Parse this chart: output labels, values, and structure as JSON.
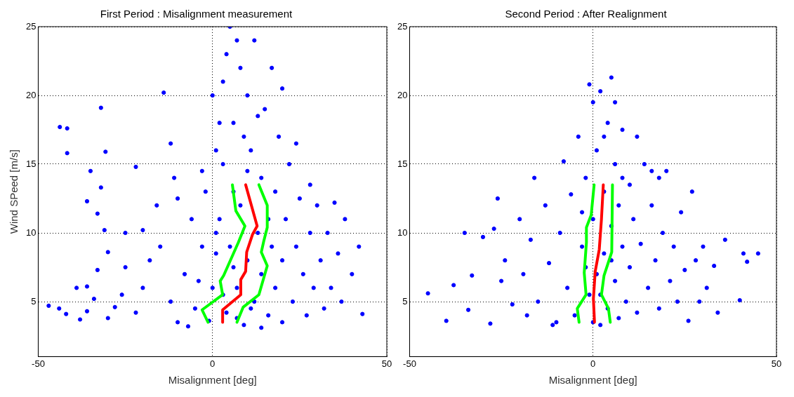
{
  "chart_data": [
    {
      "type": "scatter",
      "title": "First Period : Misalignment measurement",
      "xlabel": "Misalignment [deg]",
      "ylabel": "Wind SPeed [m/s]",
      "xlim": [
        -50,
        50
      ],
      "xticks": [
        -50,
        0,
        50
      ],
      "ylim": [
        1,
        25
      ],
      "yticks": [
        5,
        10,
        15,
        20,
        25
      ],
      "grid": true,
      "legend": false,
      "series": [
        {
          "type": "scatter",
          "color": "#0000ff",
          "marker": "circle",
          "x": [
            -47,
            -44,
            -42,
            -38,
            -36,
            -39,
            -34,
            -30,
            -28,
            -26,
            -25,
            -22,
            -20,
            -18,
            -20,
            -15,
            -12,
            -10,
            -8,
            -6,
            -5,
            -3,
            -2,
            -1,
            0,
            1,
            2,
            3,
            4,
            5,
            6,
            7,
            8,
            8,
            9,
            10,
            10,
            11,
            12,
            12,
            13,
            14,
            14,
            15,
            16,
            16,
            17,
            18,
            18,
            19,
            20,
            20,
            21,
            22,
            23,
            24,
            25,
            26,
            27,
            28,
            29,
            30,
            31,
            32,
            33,
            34,
            35,
            36,
            37,
            38,
            40,
            42,
            43,
            5,
            3,
            7,
            2,
            9,
            1,
            -3,
            13,
            6,
            -14,
            -12,
            -11,
            -22,
            -16,
            -32,
            -43.8,
            -41.7,
            -41.7,
            -30.7,
            -32,
            -36,
            -35,
            -33,
            -31,
            -30,
            -33,
            -36,
            -25,
            -10,
            0,
            4,
            10,
            20,
            17,
            24,
            28,
            3,
            7,
            -4,
            11,
            14,
            -7,
            1,
            6
          ],
          "values": [
            4.7,
            4.5,
            4.1,
            3.7,
            4.3,
            6,
            5.2,
            3.8,
            4.6,
            5.5,
            7.5,
            4.2,
            6,
            8,
            10.2,
            9,
            5,
            3.5,
            7,
            11,
            4.5,
            9,
            13,
            3.6,
            6,
            8.5,
            11,
            15,
            4.2,
            9,
            18,
            6,
            22,
            12,
            3.3,
            20,
            8,
            16,
            5,
            24,
            10,
            14,
            7,
            19,
            4,
            11,
            9,
            13,
            6,
            17,
            3.5,
            8,
            11,
            15,
            5,
            9,
            12.5,
            7,
            4,
            10,
            6,
            12,
            8,
            4.5,
            10,
            6,
            12.2,
            8.5,
            5,
            11,
            7,
            9,
            4.1,
            25,
            21,
            24,
            18,
            17,
            16,
            14.5,
            18.5,
            13,
            20.2,
            16.5,
            14,
            14.8,
            12,
            19.1,
            17.7,
            17.6,
            15.8,
            15.9,
            13.3,
            12.3,
            14.5,
            11.4,
            10.2,
            8.6,
            7.3,
            6.1,
            10,
            12.5,
            20,
            23,
            14.5,
            20.5,
            22,
            16.5,
            13.5,
            5.5,
            3.8,
            6.5,
            4.5,
            3.1,
            3.2,
            10,
            7.5
          ]
        },
        {
          "type": "line",
          "color": "#ff0000",
          "marker": "none",
          "x": [
            2.9,
            2.9,
            8.1,
            8.1,
            9.5,
            9.8,
            11.5,
            12.8,
            9.5
          ],
          "values": [
            3.5,
            4.4,
            5.5,
            6.6,
            7.2,
            8.6,
            9.9,
            10.5,
            13.5
          ]
        },
        {
          "type": "line",
          "color": "#00ff00",
          "marker": "none",
          "x": [
            -1.3,
            -3.0,
            2.9,
            2.2,
            3.2,
            7.4,
            9.3,
            6.7,
            5.7
          ],
          "values": [
            3.5,
            4.4,
            5.5,
            6.5,
            6.9,
            9.3,
            10.5,
            11.6,
            13.5
          ]
        },
        {
          "type": "line",
          "color": "#00ff00",
          "marker": "none",
          "x": [
            7.0,
            8.8,
            13.3,
            15.7,
            14.0,
            14.7,
            15.7,
            15.7,
            13.3
          ],
          "values": [
            3.5,
            4.6,
            5.5,
            7.6,
            8.6,
            9.4,
            10.4,
            12.0,
            13.5
          ]
        }
      ]
    },
    {
      "type": "scatter",
      "title": "Second Period : After Realignment",
      "xlabel": "Misalignment [deg]",
      "xlim": [
        -50,
        50
      ],
      "xticks": [
        -50,
        0,
        50
      ],
      "ylim": [
        1,
        25
      ],
      "yticks": [
        5,
        10,
        15,
        20,
        25
      ],
      "grid": true,
      "legend": false,
      "series": [
        {
          "type": "scatter",
          "color": "#0000ff",
          "marker": "circle",
          "x": [
            -45,
            -34,
            -33,
            -30,
            -28,
            -27,
            -25,
            -24,
            -22,
            -20,
            -19,
            -17,
            -16,
            -15,
            -13,
            -12,
            -10,
            -9,
            -8,
            -7,
            -6,
            -5,
            -4,
            -3,
            -2,
            -1,
            0,
            0,
            1,
            1,
            2,
            2,
            3,
            3,
            4,
            4,
            5,
            5,
            6,
            6,
            7,
            7,
            8,
            8,
            9,
            10,
            10,
            11,
            12,
            13,
            14,
            15,
            16,
            17,
            18,
            19,
            20,
            21,
            22,
            23,
            24,
            25,
            26,
            27,
            28,
            29,
            30,
            31,
            33,
            36,
            34,
            41,
            42,
            45,
            40,
            -40,
            -38,
            -35,
            -26,
            -18,
            -11,
            3,
            -1,
            6,
            12,
            -3,
            8,
            16,
            18,
            2,
            -2,
            0,
            5
          ],
          "values": [
            5.6,
            4.4,
            6.9,
            9.7,
            3.4,
            10.3,
            6.5,
            8,
            4.8,
            11,
            7,
            9.5,
            14,
            5,
            12,
            7.8,
            3.5,
            10,
            15.2,
            6,
            12.8,
            4,
            17,
            9,
            14,
            5.5,
            19.5,
            11,
            7,
            16,
            3.3,
            20.3,
            13,
            8.5,
            18,
            4.5,
            10.5,
            21.3,
            15,
            6.5,
            12,
            3.8,
            17.5,
            9,
            5,
            13.5,
            7.5,
            11,
            4.2,
            9.2,
            15,
            6,
            12,
            8,
            4.5,
            10,
            14.5,
            6.5,
            9,
            5,
            11.5,
            7.3,
            3.6,
            13,
            8,
            5,
            9,
            6,
            7.6,
            9.5,
            4.2,
            8.5,
            7.9,
            8.5,
            5.1,
            3.6,
            6.2,
            10,
            12.5,
            4,
            3.3,
            17,
            20.8,
            19.5,
            17,
            11.5,
            14,
            14.5,
            14,
            5.5,
            7.5,
            3.5,
            8
          ]
        },
        {
          "type": "line",
          "color": "#ff0000",
          "marker": "none",
          "x": [
            0.4,
            0.1,
            0.6,
            1.7,
            2.3,
            2.8
          ],
          "values": [
            3.5,
            5.2,
            7.2,
            8.8,
            11.0,
            13.5
          ]
        },
        {
          "type": "line",
          "color": "#00ff00",
          "marker": "none",
          "x": [
            -3.8,
            -4.3,
            -1.9,
            -2.4,
            -1.8,
            -1.8,
            -0.5,
            0.3
          ],
          "values": [
            3.5,
            4.5,
            5.5,
            7.1,
            9.3,
            10.4,
            11.3,
            13.5
          ]
        },
        {
          "type": "line",
          "color": "#00ff00",
          "marker": "none",
          "x": [
            4.7,
            4.2,
            2.3,
            3.0,
            5.1,
            5.3
          ],
          "values": [
            3.5,
            4.5,
            5.5,
            6.9,
            8.6,
            13.5
          ]
        }
      ]
    }
  ]
}
